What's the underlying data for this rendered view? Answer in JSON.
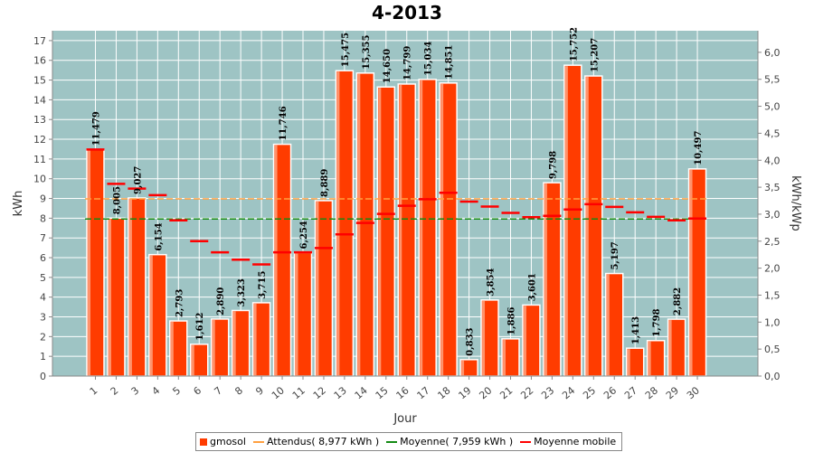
{
  "chart_data": {
    "type": "bar",
    "title": "4-2013",
    "xlabel": "Jour",
    "ylabel": "kWh",
    "y2label": "kWh/kWp",
    "ylim": [
      0,
      17.5
    ],
    "y2lim": [
      0,
      6.4
    ],
    "yticks": [
      "0",
      "1",
      "2",
      "3",
      "4",
      "5",
      "6",
      "7",
      "8",
      "9",
      "10",
      "11",
      "12",
      "13",
      "14",
      "15",
      "16",
      "17"
    ],
    "y2ticks": [
      "0,0",
      "0,5",
      "1,0",
      "1,5",
      "2,0",
      "2,5",
      "3,0",
      "3,5",
      "4,0",
      "4,5",
      "5,0",
      "5,5",
      "6,0"
    ],
    "categories": [
      "1",
      "2",
      "3",
      "4",
      "5",
      "6",
      "7",
      "8",
      "9",
      "10",
      "11",
      "12",
      "13",
      "14",
      "15",
      "16",
      "17",
      "18",
      "19",
      "20",
      "21",
      "22",
      "23",
      "24",
      "25",
      "26",
      "27",
      "28",
      "29",
      "30"
    ],
    "series": [
      {
        "name": "gmosol",
        "color": "#ff3c00",
        "values": [
          11.479,
          8.005,
          9.027,
          6.154,
          2.793,
          1.612,
          2.89,
          3.323,
          3.715,
          11.746,
          6.254,
          8.889,
          15.475,
          15.355,
          14.65,
          14.799,
          15.034,
          14.851,
          0.833,
          3.854,
          1.886,
          3.601,
          9.798,
          15.752,
          15.207,
          5.197,
          1.413,
          1.798,
          2.882,
          10.497
        ],
        "labels": [
          "11,479",
          "8,005",
          "9,027",
          "6,154",
          "2,793",
          "1,612",
          "2,890",
          "3,323",
          "3,715",
          "11,746",
          "6,254",
          "8,889",
          "15,475",
          "15,355",
          "14,650",
          "14,799",
          "15,034",
          "14,851",
          "0,833",
          "3,854",
          "1,886",
          "3,601",
          "9,798",
          "15,752",
          "15,207",
          "5,197",
          "1,413",
          "1,798",
          "2,882",
          "10,497"
        ]
      },
      {
        "name": "Moyenne mobile",
        "color": "#ff0000",
        "values": [
          11.48,
          9.74,
          9.5,
          9.17,
          7.89,
          6.84,
          6.27,
          5.9,
          5.66,
          6.27,
          6.27,
          6.49,
          7.18,
          7.76,
          8.22,
          8.63,
          8.96,
          9.29,
          8.84,
          8.59,
          8.27,
          8.05,
          8.12,
          8.44,
          8.71,
          8.57,
          8.3,
          8.07,
          7.89,
          7.98
        ]
      }
    ],
    "reference_lines": [
      {
        "name": "Attendus( 8,977 kWh )",
        "value": 8.977,
        "color": "#ffa040"
      },
      {
        "name": "Moyenne( 7,959 kWh )",
        "value": 7.959,
        "color": "#138a13"
      }
    ],
    "legend": {
      "position": "bottom",
      "items": [
        {
          "label": "gmosol",
          "color": "#ff3c00",
          "kind": "square"
        },
        {
          "label": "Attendus( 8,977 kWh )",
          "color": "#ffa040",
          "kind": "line"
        },
        {
          "label": "Moyenne( 7,959 kWh )",
          "color": "#138a13",
          "kind": "line"
        },
        {
          "label": "Moyenne mobile",
          "color": "#ff0000",
          "kind": "line"
        }
      ]
    },
    "plot_background": "#9ec4c4",
    "grid": true
  }
}
